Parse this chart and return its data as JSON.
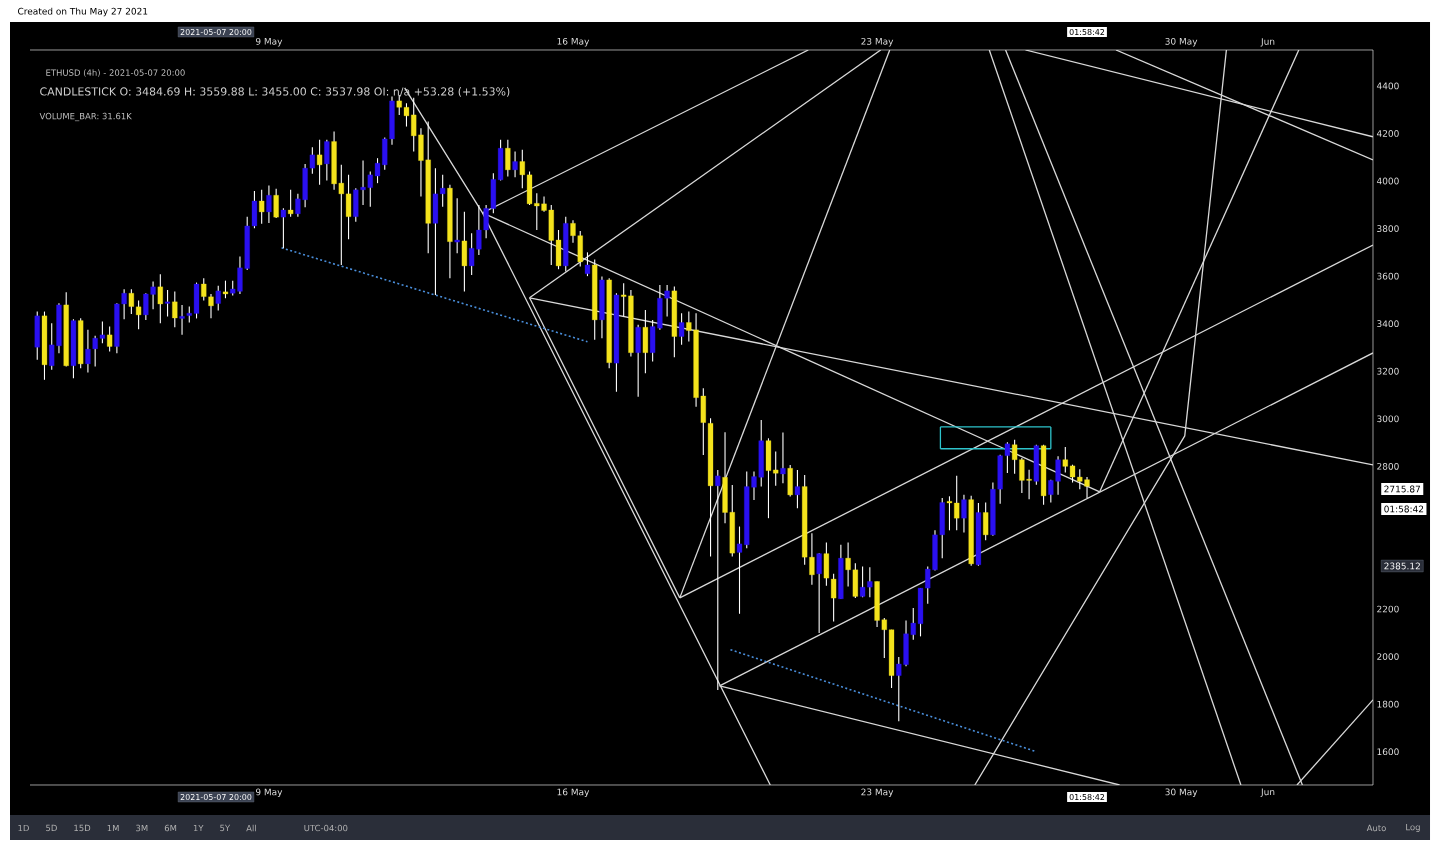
{
  "chart_data": {
    "type": "candlestick",
    "title": "ETHUSD (4h) - 2021-05-07 20:00",
    "subtitle": "CANDLESTICK O: 3484.69 H: 3559.88 L: 3455.00 C: 3537.98 OI: n/a +53.28 (+1.53%)",
    "annotations": [
      "Created on Thu May 27 2021",
      "VOLUME_BAR: 31.61K",
      "01:58:42",
      "2715.87",
      "2385.12",
      "2021-05-07 20:00",
      "2021-05-07 20:00",
      "01:58:42",
      "01:58:42",
      "1D",
      "5D",
      "15D",
      "1M",
      "3M",
      "6M",
      "1Y",
      "5Y",
      "All",
      "UTC-04:00",
      "Auto",
      "Log"
    ],
    "xlim": [
      "2021-05-03T12:00",
      "2021-06-03T10:00"
    ],
    "ylim": [
      1460,
      4551
    ],
    "xticks": [
      {
        "value": "2021-05-09",
        "label": "9 May"
      },
      {
        "value": "2021-05-16",
        "label": "16 May"
      },
      {
        "value": "2021-05-23",
        "label": "23 May"
      },
      {
        "value": "2021-05-30",
        "label": "30 May"
      },
      {
        "value": "2021-06-01",
        "label": "Jun"
      }
    ],
    "x2lim": [
      "2021-05-03T12:00",
      "2021-06-03T10:00"
    ],
    "x2ticks": [
      {
        "value": "2021-05-09",
        "label": "9 May"
      },
      {
        "value": "2021-05-16",
        "label": "16 May"
      },
      {
        "value": "2021-05-23",
        "label": "23 May"
      },
      {
        "value": "2021-05-30",
        "label": "30 May"
      },
      {
        "value": "2021-06-01",
        "label": "Jun"
      }
    ],
    "yticks": [
      1600,
      1800,
      2000,
      2200,
      2800,
      3000,
      3200,
      3400,
      3600,
      3800,
      4000,
      4200,
      4400
    ],
    "x": [
      "2021-05-03T16:00",
      "2021-05-03T20:00",
      "2021-05-04T00:00",
      "2021-05-04T04:00",
      "2021-05-04T08:00",
      "2021-05-04T12:00",
      "2021-05-04T16:00",
      "2021-05-04T20:00",
      "2021-05-05T00:00",
      "2021-05-05T04:00",
      "2021-05-05T08:00",
      "2021-05-05T12:00",
      "2021-05-05T16:00",
      "2021-05-05T20:00",
      "2021-05-06T00:00",
      "2021-05-06T04:00",
      "2021-05-06T08:00",
      "2021-05-06T12:00",
      "2021-05-06T16:00",
      "2021-05-06T20:00",
      "2021-05-07T00:00",
      "2021-05-07T04:00",
      "2021-05-07T08:00",
      "2021-05-07T12:00",
      "2021-05-07T16:00",
      "2021-05-07T20:00",
      "2021-05-08T00:00",
      "2021-05-08T04:00",
      "2021-05-08T08:00",
      "2021-05-08T12:00",
      "2021-05-08T16:00",
      "2021-05-08T20:00",
      "2021-05-09T00:00",
      "2021-05-09T04:00",
      "2021-05-09T08:00",
      "2021-05-09T12:00",
      "2021-05-09T16:00",
      "2021-05-09T20:00",
      "2021-05-10T00:00",
      "2021-05-10T04:00",
      "2021-05-10T08:00",
      "2021-05-10T12:00",
      "2021-05-10T16:00",
      "2021-05-10T20:00",
      "2021-05-11T00:00",
      "2021-05-11T04:00",
      "2021-05-11T08:00",
      "2021-05-11T12:00",
      "2021-05-11T16:00",
      "2021-05-11T20:00",
      "2021-05-12T00:00",
      "2021-05-12T04:00",
      "2021-05-12T08:00",
      "2021-05-12T12:00",
      "2021-05-12T16:00",
      "2021-05-12T20:00",
      "2021-05-13T00:00",
      "2021-05-13T04:00",
      "2021-05-13T08:00",
      "2021-05-13T12:00",
      "2021-05-13T16:00",
      "2021-05-13T20:00",
      "2021-05-14T00:00",
      "2021-05-14T04:00",
      "2021-05-14T08:00",
      "2021-05-14T12:00",
      "2021-05-14T16:00",
      "2021-05-14T20:00",
      "2021-05-15T00:00",
      "2021-05-15T04:00",
      "2021-05-15T08:00",
      "2021-05-15T12:00",
      "2021-05-15T16:00",
      "2021-05-15T20:00",
      "2021-05-16T00:00",
      "2021-05-16T04:00",
      "2021-05-16T08:00",
      "2021-05-16T12:00",
      "2021-05-16T16:00",
      "2021-05-16T20:00",
      "2021-05-17T00:00",
      "2021-05-17T04:00",
      "2021-05-17T08:00",
      "2021-05-17T12:00",
      "2021-05-17T16:00",
      "2021-05-17T20:00",
      "2021-05-18T00:00",
      "2021-05-18T04:00",
      "2021-05-18T08:00",
      "2021-05-18T12:00",
      "2021-05-18T16:00",
      "2021-05-18T20:00",
      "2021-05-19T00:00",
      "2021-05-19T04:00",
      "2021-05-19T08:00",
      "2021-05-19T12:00",
      "2021-05-19T16:00",
      "2021-05-19T20:00",
      "2021-05-20T00:00",
      "2021-05-20T04:00",
      "2021-05-20T08:00",
      "2021-05-20T12:00",
      "2021-05-20T16:00",
      "2021-05-20T20:00",
      "2021-05-21T00:00",
      "2021-05-21T04:00",
      "2021-05-21T08:00",
      "2021-05-21T12:00",
      "2021-05-21T16:00",
      "2021-05-21T20:00",
      "2021-05-22T00:00",
      "2021-05-22T04:00",
      "2021-05-22T08:00",
      "2021-05-22T12:00",
      "2021-05-22T16:00",
      "2021-05-22T20:00",
      "2021-05-23T00:00",
      "2021-05-23T04:00",
      "2021-05-23T08:00",
      "2021-05-23T12:00",
      "2021-05-23T16:00",
      "2021-05-23T20:00",
      "2021-05-24T00:00",
      "2021-05-24T04:00",
      "2021-05-24T08:00",
      "2021-05-24T12:00",
      "2021-05-24T16:00",
      "2021-05-24T20:00",
      "2021-05-25T00:00",
      "2021-05-25T04:00",
      "2021-05-25T08:00",
      "2021-05-25T12:00",
      "2021-05-25T16:00",
      "2021-05-25T20:00",
      "2021-05-26T00:00",
      "2021-05-26T04:00",
      "2021-05-26T08:00",
      "2021-05-26T12:00",
      "2021-05-26T16:00",
      "2021-05-26T20:00",
      "2021-05-27T00:00",
      "2021-05-27T04:00",
      "2021-05-27T08:00",
      "2021-05-27T12:00",
      "2021-05-27T16:00",
      "2021-05-27T20:00"
    ],
    "ohlc": [
      [
        3301,
        3451,
        3248,
        3433
      ],
      [
        3433,
        3451,
        3164,
        3227
      ],
      [
        3223,
        3402,
        3206,
        3311
      ],
      [
        3307,
        3486,
        3276,
        3479
      ],
      [
        3479,
        3532,
        3220,
        3223
      ],
      [
        3223,
        3419,
        3171,
        3413
      ],
      [
        3413,
        3423,
        3213,
        3231
      ],
      [
        3231,
        3374,
        3195,
        3293
      ],
      [
        3294,
        3349,
        3220,
        3339
      ],
      [
        3338,
        3409,
        3318,
        3353
      ],
      [
        3353,
        3388,
        3283,
        3304
      ],
      [
        3304,
        3486,
        3276,
        3483
      ],
      [
        3483,
        3545,
        3419,
        3528
      ],
      [
        3528,
        3545,
        3441,
        3472
      ],
      [
        3471,
        3497,
        3377,
        3437
      ],
      [
        3437,
        3528,
        3416,
        3525
      ],
      [
        3523,
        3577,
        3461,
        3555
      ],
      [
        3555,
        3608,
        3402,
        3483
      ],
      [
        3485,
        3542,
        3430,
        3492
      ],
      [
        3492,
        3535,
        3385,
        3424
      ],
      [
        3422,
        3479,
        3353,
        3431
      ],
      [
        3434,
        3472,
        3405,
        3444
      ],
      [
        3443,
        3573,
        3422,
        3567
      ],
      [
        3567,
        3591,
        3497,
        3514
      ],
      [
        3513,
        3525,
        3423,
        3475
      ],
      [
        3484.69,
        3559.88,
        3455.0,
        3537.98
      ],
      [
        3534,
        3581,
        3507,
        3525
      ],
      [
        3528,
        3581,
        3518,
        3546
      ],
      [
        3536,
        3682,
        3525,
        3635
      ],
      [
        3632,
        3850,
        3626,
        3811
      ],
      [
        3811,
        3958,
        3801,
        3916
      ],
      [
        3916,
        3963,
        3820,
        3870
      ],
      [
        3870,
        3981,
        3823,
        3940
      ],
      [
        3940,
        3967,
        3844,
        3848
      ],
      [
        3848,
        3885,
        3717,
        3878
      ],
      [
        3878,
        3963,
        3850,
        3862
      ],
      [
        3862,
        3946,
        3850,
        3925
      ],
      [
        3921,
        4072,
        3890,
        4054
      ],
      [
        4054,
        4142,
        4030,
        4110
      ],
      [
        4110,
        4173,
        3984,
        4068
      ],
      [
        4072,
        4173,
        4002,
        4166
      ],
      [
        4166,
        4208,
        3963,
        3988
      ],
      [
        3991,
        4068,
        3647,
        3946
      ],
      [
        3946,
        4026,
        3755,
        3850
      ],
      [
        3850,
        3970,
        3829,
        3963
      ],
      [
        3963,
        4086,
        3899,
        3974
      ],
      [
        3972,
        4040,
        3892,
        4026
      ],
      [
        4021,
        4096,
        3991,
        4075
      ],
      [
        4068,
        4183,
        4047,
        4177
      ],
      [
        4177,
        4355,
        4152,
        4337
      ],
      [
        4337,
        4362,
        4278,
        4310
      ],
      [
        4310,
        4327,
        4229,
        4274
      ],
      [
        4278,
        4350,
        4124,
        4190
      ],
      [
        4194,
        4222,
        3935,
        4086
      ],
      [
        4089,
        4250,
        3696,
        3822
      ],
      [
        3822,
        4054,
        3521,
        3946
      ],
      [
        3946,
        4026,
        3892,
        3970
      ],
      [
        3970,
        3984,
        3591,
        3745
      ],
      [
        3743,
        3928,
        3696,
        3752
      ],
      [
        3748,
        3871,
        3535,
        3643
      ],
      [
        3643,
        3780,
        3605,
        3717
      ],
      [
        3713,
        3899,
        3689,
        3794
      ],
      [
        3794,
        3899,
        3759,
        3885
      ],
      [
        3884,
        4033,
        3864,
        4007
      ],
      [
        4005,
        4173,
        4002,
        4138
      ],
      [
        4138,
        4173,
        4019,
        4047
      ],
      [
        4047,
        4124,
        4016,
        4082
      ],
      [
        4082,
        4131,
        3970,
        4026
      ],
      [
        4026,
        4040,
        3899,
        3904
      ],
      [
        3906,
        3949,
        3794,
        3895
      ],
      [
        3904,
        3935,
        3871,
        3876
      ],
      [
        3878,
        3899,
        3647,
        3750
      ],
      [
        3752,
        3794,
        3629,
        3643
      ],
      [
        3643,
        3850,
        3619,
        3822
      ],
      [
        3822,
        3835,
        3740,
        3770
      ],
      [
        3770,
        3790,
        3640,
        3660
      ],
      [
        3610,
        3700,
        3600,
        3647
      ],
      [
        3647,
        3670,
        3332,
        3416
      ],
      [
        3416,
        3598,
        3339,
        3584
      ],
      [
        3584,
        3591,
        3213,
        3236
      ],
      [
        3234,
        3528,
        3114,
        3521
      ],
      [
        3521,
        3570,
        3430,
        3514
      ],
      [
        3517,
        3542,
        3262,
        3278
      ],
      [
        3278,
        3395,
        3093,
        3385
      ],
      [
        3385,
        3458,
        3192,
        3278
      ],
      [
        3278,
        3416,
        3241,
        3388
      ],
      [
        3381,
        3563,
        3374,
        3507
      ],
      [
        3507,
        3563,
        3430,
        3538
      ],
      [
        3538,
        3556,
        3259,
        3346
      ],
      [
        3346,
        3444,
        3311,
        3405
      ],
      [
        3405,
        3451,
        3325,
        3371
      ],
      [
        3374,
        3444,
        3051,
        3089
      ],
      [
        3096,
        3128,
        2848,
        2984
      ],
      [
        2981,
        3002,
        2421,
        2718
      ],
      [
        2718,
        2785,
        1860,
        2760
      ],
      [
        2754,
        2943,
        2561,
        2606
      ],
      [
        2607,
        2722,
        2421,
        2435
      ],
      [
        2438,
        2547,
        2180,
        2474
      ],
      [
        2470,
        2778,
        2456,
        2715
      ],
      [
        2712,
        2778,
        2659,
        2757
      ],
      [
        2754,
        2995,
        2715,
        2908
      ],
      [
        2908,
        2918,
        2582,
        2782
      ],
      [
        2785,
        2862,
        2718,
        2771
      ],
      [
        2768,
        2942,
        2729,
        2792
      ],
      [
        2792,
        2806,
        2673,
        2680
      ],
      [
        2680,
        2785,
        2624,
        2715
      ],
      [
        2715,
        2764,
        2386,
        2418
      ],
      [
        2418,
        2519,
        2302,
        2344
      ],
      [
        2348,
        2435,
        2099,
        2433
      ],
      [
        2433,
        2480,
        2298,
        2330
      ],
      [
        2326,
        2348,
        2148,
        2246
      ],
      [
        2243,
        2470,
        2243,
        2414
      ],
      [
        2414,
        2480,
        2295,
        2365
      ],
      [
        2365,
        2393,
        2246,
        2253
      ],
      [
        2253,
        2379,
        2250,
        2292
      ],
      [
        2292,
        2376,
        2250,
        2316
      ],
      [
        2316,
        2316,
        2124,
        2152
      ],
      [
        2155,
        2162,
        1994,
        2113
      ],
      [
        2113,
        2113,
        1868,
        1920
      ],
      [
        1920,
        1998,
        1728,
        1969
      ],
      [
        1966,
        2152,
        1959,
        2096
      ],
      [
        2092,
        2204,
        2071,
        2141
      ],
      [
        2138,
        2288,
        2085,
        2288
      ],
      [
        2288,
        2379,
        2222,
        2368
      ],
      [
        2365,
        2531,
        2362,
        2512
      ],
      [
        2512,
        2667,
        2414,
        2648
      ],
      [
        2653,
        2674,
        2531,
        2646
      ],
      [
        2646,
        2760,
        2531,
        2582
      ],
      [
        2582,
        2681,
        2522,
        2660
      ],
      [
        2660,
        2676,
        2382,
        2390
      ],
      [
        2386,
        2646,
        2382,
        2606
      ],
      [
        2606,
        2648,
        2489,
        2512
      ],
      [
        2512,
        2732,
        2508,
        2704
      ],
      [
        2704,
        2849,
        2643,
        2845
      ],
      [
        2845,
        2901,
        2772,
        2895
      ],
      [
        2891,
        2912,
        2769,
        2828
      ],
      [
        2828,
        2835,
        2688,
        2741
      ],
      [
        2746,
        2786,
        2662,
        2741
      ],
      [
        2737,
        2891,
        2723,
        2887
      ],
      [
        2887,
        2891,
        2639,
        2676
      ],
      [
        2681,
        2744,
        2648,
        2741
      ],
      [
        2737,
        2842,
        2681,
        2828
      ],
      [
        2828,
        2881,
        2774,
        2800
      ],
      [
        2802,
        2807,
        2732,
        2755
      ],
      [
        2755,
        2788,
        2704,
        2737
      ],
      [
        2744,
        2755,
        2667,
        2716
      ]
    ],
    "colors": [
      "#2a10f0",
      "#f4e31c",
      "#2a10f0",
      "#2a10f0",
      "#f4e31c",
      "#2a10f0",
      "#f4e31c",
      "#2a10f0",
      "#2a10f0",
      "#2a10f0",
      "#f4e31c",
      "#2a10f0",
      "#2a10f0",
      "#f4e31c",
      "#f4e31c",
      "#2a10f0",
      "#2a10f0",
      "#f4e31c",
      "#2a10f0",
      "#f4e31c",
      "#2a10f0",
      "#2a10f0",
      "#2a10f0",
      "#f4e31c",
      "#f4e31c",
      "#2a10f0",
      "#f4e31c",
      "#2a10f0",
      "#2a10f0",
      "#2a10f0",
      "#2a10f0",
      "#f4e31c",
      "#2a10f0",
      "#f4e31c",
      "#2a10f0",
      "#f4e31c",
      "#2a10f0",
      "#2a10f0",
      "#2a10f0",
      "#f4e31c",
      "#2a10f0",
      "#f4e31c",
      "#f4e31c",
      "#f4e31c",
      "#2a10f0",
      "#2a10f0",
      "#2a10f0",
      "#2a10f0",
      "#2a10f0",
      "#2a10f0",
      "#f4e31c",
      "#f4e31c",
      "#f4e31c",
      "#f4e31c",
      "#f4e31c",
      "#2a10f0",
      "#2a10f0",
      "#f4e31c",
      "#2a10f0",
      "#f4e31c",
      "#2a10f0",
      "#2a10f0",
      "#2a10f0",
      "#2a10f0",
      "#2a10f0",
      "#f4e31c",
      "#2a10f0",
      "#f4e31c",
      "#f4e31c",
      "#f4e31c",
      "#f4e31c",
      "#f4e31c",
      "#f4e31c",
      "#2a10f0",
      "#f4e31c",
      "#f4e31c",
      "#2a10f0",
      "#f4e31c",
      "#2a10f0",
      "#f4e31c",
      "#2a10f0",
      "#f4e31c",
      "#f4e31c",
      "#2a10f0",
      "#f4e31c",
      "#2a10f0",
      "#2a10f0",
      "#2a10f0",
      "#f4e31c",
      "#2a10f0",
      "#f4e31c",
      "#f4e31c",
      "#f4e31c",
      "#f4e31c",
      "#2a10f0",
      "#f4e31c",
      "#f4e31c",
      "#2a10f0",
      "#2a10f0",
      "#2a10f0",
      "#2a10f0",
      "#f4e31c",
      "#f4e31c",
      "#2a10f0",
      "#f4e31c",
      "#2a10f0",
      "#f4e31c",
      "#f4e31c",
      "#2a10f0",
      "#f4e31c",
      "#f4e31c",
      "#2a10f0",
      "#f4e31c",
      "#f4e31c",
      "#2a10f0",
      "#2a10f0",
      "#f4e31c",
      "#f4e31c",
      "#f4e31c",
      "#2a10f0",
      "#2a10f0",
      "#2a10f0",
      "#2a10f0",
      "#2a10f0",
      "#2a10f0",
      "#2a10f0",
      "#f4e31c",
      "#f4e31c",
      "#2a10f0",
      "#f4e31c",
      "#2a10f0",
      "#f4e31c",
      "#2a10f0",
      "#2a10f0",
      "#2a10f0",
      "#f4e31c",
      "#f4e31c",
      "#f4e31c",
      "#2a10f0",
      "#f4e31c",
      "#2a10f0",
      "#2a10f0",
      "#f4e31c",
      "#f4e31c",
      "#f4e31c",
      "#f4e31c"
    ],
    "series": [
      {
        "type": "line",
        "color": "#d9d9d9",
        "x": [
          "2021-05-13T22:00",
          "2021-05-21T10:00"
        ],
        "values": [
          3866,
          4551
        ]
      },
      {
        "type": "line",
        "color": "#d9d9d9",
        "x": [
          "2021-05-13T22:00",
          "2021-05-28T03:00"
        ],
        "values": [
          3866,
          2693
        ]
      },
      {
        "type": "line",
        "color": "#d9d9d9",
        "x": [
          "2021-05-12T03:00",
          "2021-05-13T22:00",
          "2021-05-20T13:00"
        ],
        "values": [
          4392,
          3866,
          1460
        ]
      },
      {
        "type": "line",
        "color": "#d9d9d9",
        "x": [
          "2021-05-15T00:00",
          "2021-06-03T10:00"
        ],
        "values": [
          3509,
          2806
        ]
      },
      {
        "type": "line",
        "color": "#d9d9d9",
        "x": [
          "2021-05-15T00:00",
          "2021-05-23T02:00"
        ],
        "values": [
          3509,
          4551
        ]
      },
      {
        "type": "line",
        "color": "#d9d9d9",
        "x": [
          "2021-05-19T09:00",
          "2021-06-03T10:00"
        ],
        "values": [
          1877,
          3277
        ]
      },
      {
        "type": "line",
        "color": "#d9d9d9",
        "x": [
          "2021-05-18T11:00",
          "2021-06-03T10:00"
        ],
        "values": [
          2247,
          3731
        ]
      },
      {
        "type": "line",
        "color": "#d9d9d9",
        "x": [
          "2021-05-15T00:00",
          "2021-05-18T11:00"
        ],
        "values": [
          3509,
          2247
        ]
      },
      {
        "type": "line",
        "color": "#d9d9d9",
        "x": [
          "2021-05-18T11:00",
          "2021-05-23T07:00"
        ],
        "values": [
          2247,
          4551
        ]
      },
      {
        "type": "line",
        "color": "#d9d9d9",
        "x": [
          "2021-05-19T09:00",
          "2021-05-28T14:00"
        ],
        "values": [
          1877,
          1460
        ]
      },
      {
        "type": "line",
        "color": "#d9d9d9",
        "x": [
          "2021-05-25T14:00",
          "2021-05-31T09:00"
        ],
        "values": [
          4551,
          1460
        ]
      },
      {
        "type": "line",
        "color": "#d9d9d9",
        "x": [
          "2021-05-25T23:00",
          "2021-06-01T19:00"
        ],
        "values": [
          4551,
          1460
        ]
      },
      {
        "type": "line",
        "color": "#d9d9d9",
        "x": [
          "2021-05-26T10:00",
          "2021-06-03T10:00"
        ],
        "values": [
          4551,
          4186
        ]
      },
      {
        "type": "line",
        "color": "#d9d9d9",
        "x": [
          "2021-05-28T12:00",
          "2021-06-03T10:00"
        ],
        "values": [
          4551,
          4089
        ]
      },
      {
        "type": "line",
        "color": "#d9d9d9",
        "x": [
          "2021-05-28T03:00",
          "2021-06-01T17:00"
        ],
        "values": [
          2693,
          4551
        ]
      },
      {
        "type": "line",
        "color": "#d9d9d9",
        "x": [
          "2021-05-25T06:00",
          "2021-05-30T02:00",
          "2021-05-31T01:00"
        ],
        "values": [
          1460,
          2928,
          4551
        ]
      },
      {
        "type": "line",
        "color": "#d9d9d9",
        "x": [
          "2021-06-01T16:00",
          "2021-06-03T10:00"
        ],
        "values": [
          1460,
          1818
        ]
      },
      {
        "type": "line",
        "color": "#4a8fdc",
        "line_style": "dotted",
        "x": [
          "2021-05-09T07:00",
          "2021-05-16T08:00"
        ],
        "values": [
          3719,
          3324
        ]
      },
      {
        "type": "line",
        "color": "#4a8fdc",
        "line_style": "dotted",
        "x": [
          "2021-05-19T15:00",
          "2021-05-26T16:00"
        ],
        "values": [
          2029,
          1600
        ]
      },
      {
        "type": "line",
        "color": "#2ec4cc",
        "x": [
          "2021-05-24T11:00",
          "2021-05-27T00:00"
        ],
        "values": [
          2966,
          2966
        ]
      },
      {
        "type": "line",
        "color": "#2ec4cc",
        "x": [
          "2021-05-24T11:00",
          "2021-05-27T00:00"
        ],
        "values": [
          2874,
          2874
        ]
      },
      {
        "type": "line",
        "color": "#2ec4cc",
        "x": [
          "2021-05-24T11:00",
          "2021-05-24T11:00"
        ],
        "values": [
          2874,
          2966
        ]
      },
      {
        "type": "line",
        "color": "#2ec4cc",
        "x": [
          "2021-05-27T00:00",
          "2021-05-27T00:00"
        ],
        "values": [
          2874,
          2966
        ]
      }
    ]
  }
}
